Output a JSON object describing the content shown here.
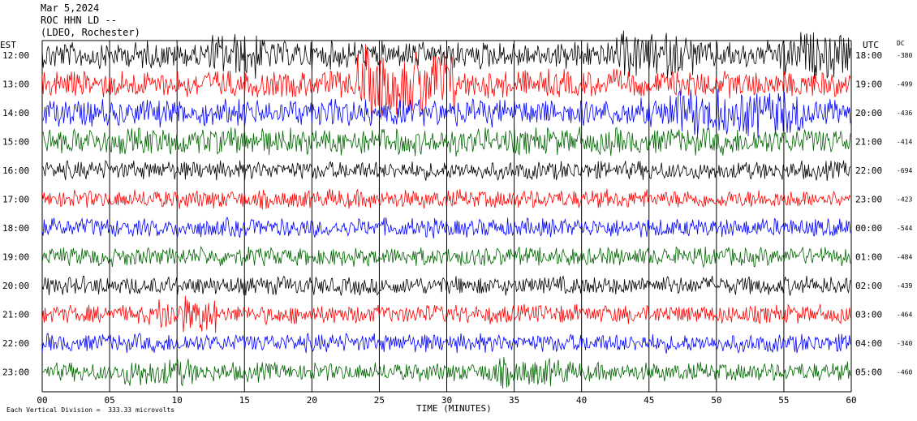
{
  "header": {
    "date": "Mar 5,2024",
    "station": "ROC HHN LD --",
    "network": "(LDEO, Rochester)"
  },
  "footer": {
    "scale_note": "Each Vertical Division =  333.33 microvolts"
  },
  "colors": {
    "trace_cycle": [
      "#000000",
      "#ff0000",
      "#0000ff",
      "#006400"
    ],
    "grid": "#000000",
    "background": "#ffffff"
  },
  "chart_data": {
    "type": "line",
    "title": "",
    "xlabel": "TIME (MINUTES)",
    "ylabel_left": "EST",
    "ylabel_right": "UTC",
    "dc_label": "DC",
    "x_ticks": [
      "00",
      "05",
      "10",
      "15",
      "20",
      "25",
      "30",
      "35",
      "40",
      "45",
      "50",
      "55",
      "60"
    ],
    "xlim": [
      0,
      60
    ],
    "grid": "vertical",
    "rows": [
      {
        "est": "12:00",
        "utc": "18:00",
        "dc": "-380"
      },
      {
        "est": "13:00",
        "utc": "19:00",
        "dc": "-499"
      },
      {
        "est": "14:00",
        "utc": "20:00",
        "dc": "-436"
      },
      {
        "est": "15:00",
        "utc": "21:00",
        "dc": "-414"
      },
      {
        "est": "16:00",
        "utc": "22:00",
        "dc": "-694"
      },
      {
        "est": "17:00",
        "utc": "23:00",
        "dc": "-423"
      },
      {
        "est": "18:00",
        "utc": "00:00",
        "dc": "-544"
      },
      {
        "est": "19:00",
        "utc": "01:00",
        "dc": "-484"
      },
      {
        "est": "20:00",
        "utc": "02:00",
        "dc": "-439"
      },
      {
        "est": "21:00",
        "utc": "03:00",
        "dc": "-464"
      },
      {
        "est": "22:00",
        "utc": "04:00",
        "dc": "-340"
      },
      {
        "est": "23:00",
        "utc": "05:00",
        "dc": "-460"
      }
    ]
  }
}
